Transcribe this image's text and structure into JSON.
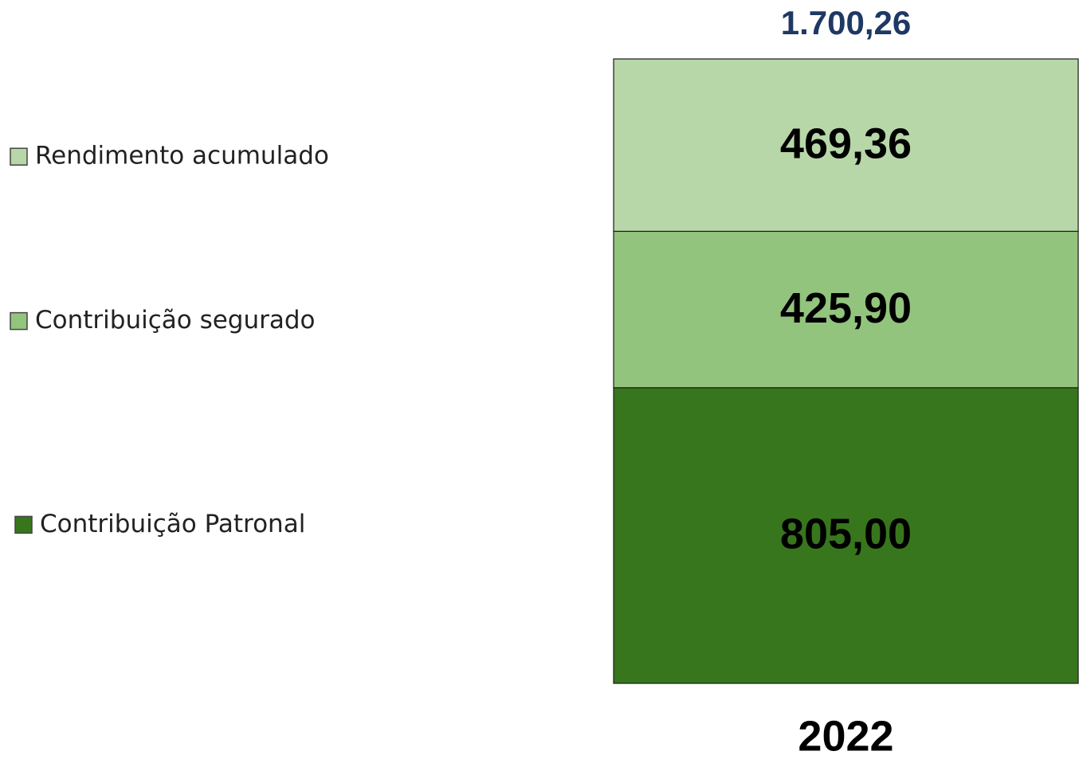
{
  "chart_data": {
    "type": "stacked_bar",
    "categories": [
      "2022"
    ],
    "series": [
      {
        "name": "Contribuição Patronal",
        "color": "#38761d",
        "values": [
          805.0
        ],
        "value_labels": [
          "805,00"
        ]
      },
      {
        "name": "Contribuição segurado",
        "color": "#93c47d",
        "values": [
          425.9
        ],
        "value_labels": [
          "425,90"
        ]
      },
      {
        "name": "Rendimento acumulado",
        "color": "#b7d7a8",
        "values": [
          469.36
        ],
        "value_labels": [
          "469,36"
        ]
      }
    ],
    "totals": [
      1700.26
    ],
    "total_labels": [
      "1.700,26"
    ],
    "legend": "left"
  }
}
